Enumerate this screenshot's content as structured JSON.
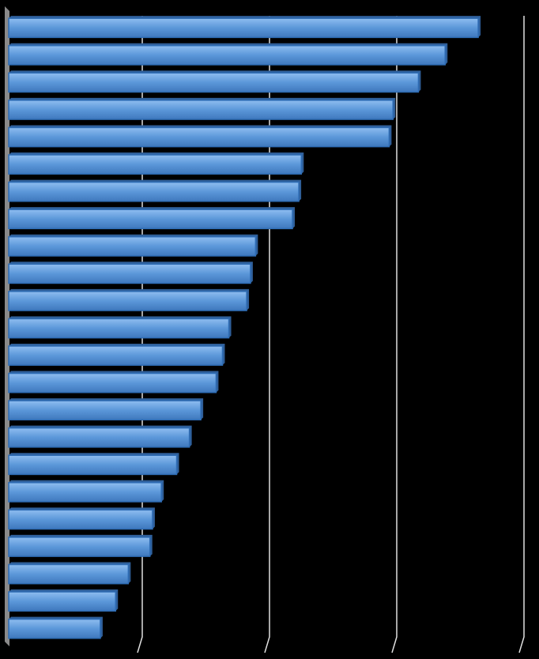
{
  "chart_data": {
    "type": "bar",
    "orientation": "horizontal",
    "categories": [
      null,
      null,
      null,
      null,
      null,
      null,
      null,
      null,
      null,
      null,
      null,
      null,
      null,
      null,
      null,
      null,
      null,
      null,
      null,
      null,
      null,
      null,
      null
    ],
    "values": [
      3.69,
      3.43,
      3.22,
      3.02,
      2.99,
      2.3,
      2.28,
      2.23,
      1.94,
      1.9,
      1.87,
      1.73,
      1.68,
      1.63,
      1.51,
      1.42,
      1.32,
      1.2,
      1.13,
      1.11,
      0.94,
      0.84,
      0.72
    ],
    "color": "#4f8fd6",
    "xlim": [
      0,
      4
    ],
    "xticks": [
      0,
      1,
      2,
      3,
      4
    ],
    "grid": true
  }
}
